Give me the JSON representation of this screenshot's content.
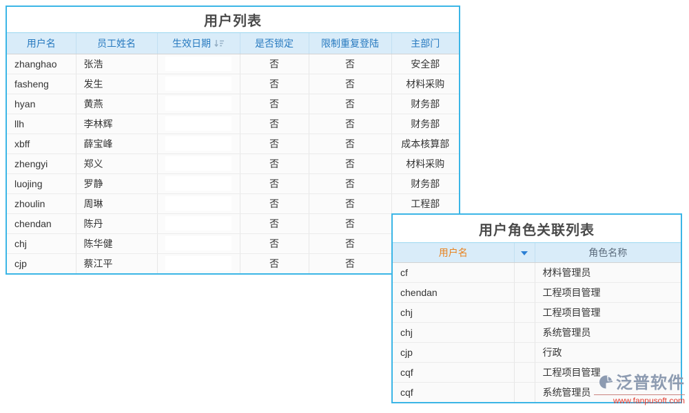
{
  "user_table": {
    "title": "用户列表",
    "columns": {
      "username": "用户名",
      "employee_name": "员工姓名",
      "effective_date": "生效日期",
      "locked": "是否锁定",
      "restrict_login": "限制重复登陆",
      "department": "主部门"
    },
    "rows": [
      {
        "username": "zhanghao",
        "name": "张浩",
        "date": "",
        "locked": "否",
        "restrict": "否",
        "dept": "安全部"
      },
      {
        "username": "fasheng",
        "name": "发生",
        "date": "",
        "locked": "否",
        "restrict": "否",
        "dept": "材料采购"
      },
      {
        "username": "hyan",
        "name": "黄燕",
        "date": "",
        "locked": "否",
        "restrict": "否",
        "dept": "财务部"
      },
      {
        "username": "llh",
        "name": "李林辉",
        "date": "",
        "locked": "否",
        "restrict": "否",
        "dept": "财务部"
      },
      {
        "username": "xbff",
        "name": "薛宝峰",
        "date": "",
        "locked": "否",
        "restrict": "否",
        "dept": "成本核算部"
      },
      {
        "username": "zhengyi",
        "name": "郑义",
        "date": "",
        "locked": "否",
        "restrict": "否",
        "dept": "材料采购"
      },
      {
        "username": "luojing",
        "name": "罗静",
        "date": "",
        "locked": "否",
        "restrict": "否",
        "dept": "财务部"
      },
      {
        "username": "zhoulin",
        "name": "周琳",
        "date": "",
        "locked": "否",
        "restrict": "否",
        "dept": "工程部"
      },
      {
        "username": "chendan",
        "name": "陈丹",
        "date": "",
        "locked": "否",
        "restrict": "否",
        "dept": ""
      },
      {
        "username": "chj",
        "name": "陈华健",
        "date": "",
        "locked": "否",
        "restrict": "否",
        "dept": ""
      },
      {
        "username": "cjp",
        "name": "蔡江平",
        "date": "",
        "locked": "否",
        "restrict": "否",
        "dept": ""
      }
    ]
  },
  "role_table": {
    "title": "用户角色关联列表",
    "columns": {
      "username": "用户名",
      "role_name": "角色名称"
    },
    "rows": [
      {
        "username": "cf",
        "role": "材料管理员"
      },
      {
        "username": "chendan",
        "role": "工程项目管理"
      },
      {
        "username": "chj",
        "role": "工程项目管理"
      },
      {
        "username": "chj",
        "role": "系统管理员"
      },
      {
        "username": "cjp",
        "role": "行政"
      },
      {
        "username": "cqf",
        "role": "工程项目管理"
      },
      {
        "username": "cqf",
        "role": "系统管理员"
      }
    ]
  },
  "watermark": {
    "brand": "泛普软件",
    "url": "www.fanpusoft.com"
  },
  "colors": {
    "card_border": "#3ab5e6",
    "header_bg": "#d9ecf9",
    "header_text_blue": "#2679bf",
    "header_text_orange": "#e8821e",
    "title_text": "#4a4a4a",
    "watermark_gray": "#8d9bb1",
    "watermark_red": "#e23a2e"
  }
}
